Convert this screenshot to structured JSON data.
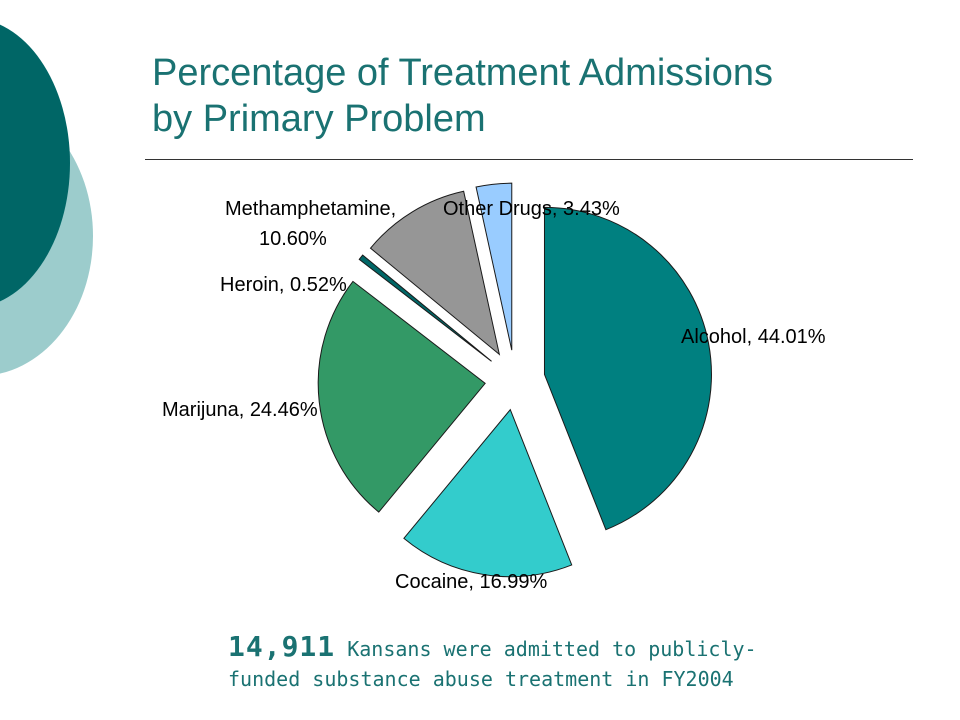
{
  "slide": {
    "title_line1": "Percentage of Treatment Admissions",
    "title_line2": "by Primary Problem",
    "footer_number": "14,911",
    "footer_line1_rest": " Kansans were admitted to publicly-",
    "footer_line2": "funded substance abuse treatment in FY2004"
  },
  "colors": {
    "accent": "#1a7272",
    "deco_dark": "#006666",
    "deco_light": "#9ccccc"
  },
  "chart_data": {
    "type": "pie",
    "title": "",
    "exploded": true,
    "slices": [
      {
        "label": "Alcohol",
        "value": 44.01,
        "label_text": "Alcohol, 44.01%",
        "color": "#008080"
      },
      {
        "label": "Cocaine",
        "value": 16.99,
        "label_text": "Cocaine, 16.99%",
        "color": "#33cccc"
      },
      {
        "label": "Marijuna",
        "value": 24.46,
        "label_text": "Marijuna, 24.46%",
        "color": "#339966"
      },
      {
        "label": "Heroin",
        "value": 0.52,
        "label_text": "Heroin, 0.52%",
        "color": "#006666"
      },
      {
        "label": "Methamphetamine",
        "value": 10.6,
        "label_text_line1": "Methamphetamine,",
        "label_text_line2": "10.60%",
        "color": "#969696"
      },
      {
        "label": "Other Drugs",
        "value": 3.43,
        "label_text": "Other Drugs, 3.43%",
        "color": "#99ccff"
      }
    ]
  }
}
